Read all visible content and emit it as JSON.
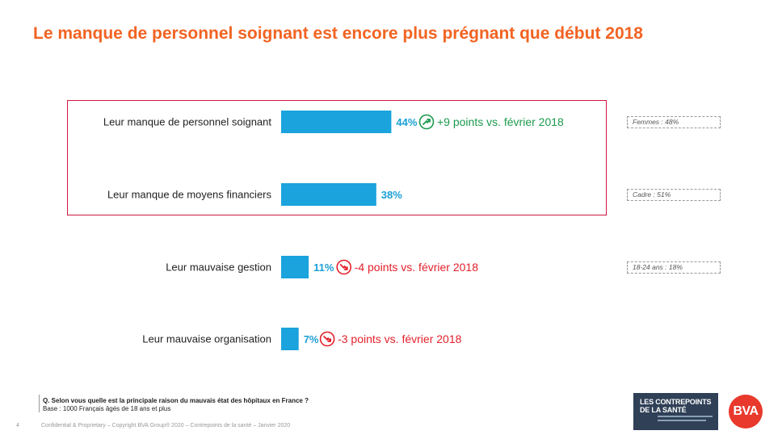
{
  "title": "Le manque de personnel soignant est encore plus prégnant que début 2018",
  "chart_data": {
    "type": "bar",
    "orientation": "horizontal",
    "categories": [
      "Leur manque de personnel soignant",
      "Leur manque de moyens financiers",
      "Leur mauvaise gestion",
      "Leur mauvaise organisation"
    ],
    "values": [
      44,
      38,
      11,
      7
    ],
    "value_labels": [
      "44%",
      "38%",
      "11%",
      "7%"
    ],
    "evolutions": [
      {
        "direction": "up",
        "text": "+9 points vs. février 2018"
      },
      null,
      {
        "direction": "down",
        "text": "-4 points vs. février 2018"
      },
      {
        "direction": "down",
        "text": "-3 points vs. février 2018"
      }
    ],
    "highlighted_categories": [
      0,
      1
    ],
    "bar_color": "#1aa3dc",
    "up_color": "#1c9a4d",
    "down_color": "#e3212b",
    "grid": false,
    "legend": "none"
  },
  "notes": [
    "Femmes : 48%",
    "Cadre : 51%",
    "18-24 ans : 18%"
  ],
  "question": "Q. Selon vous quelle est la principale raison du mauvais état des hôpitaux en France ?",
  "base": "Base : 1000 Français âgés de 18 ans et plus",
  "page_number": "4",
  "footer": "Confidential & Proprietary – Copyright BVA Group® 2020 – Contrepoints de la santé – Janvier 2020",
  "logos": {
    "contrepoints_line1": "LES CONTREPOINTS",
    "contrepoints_line2": "DE LA SANTÉ",
    "bva": "BVA"
  },
  "colors": {
    "title": "#f26322",
    "highlight_border": "#d0173f"
  }
}
